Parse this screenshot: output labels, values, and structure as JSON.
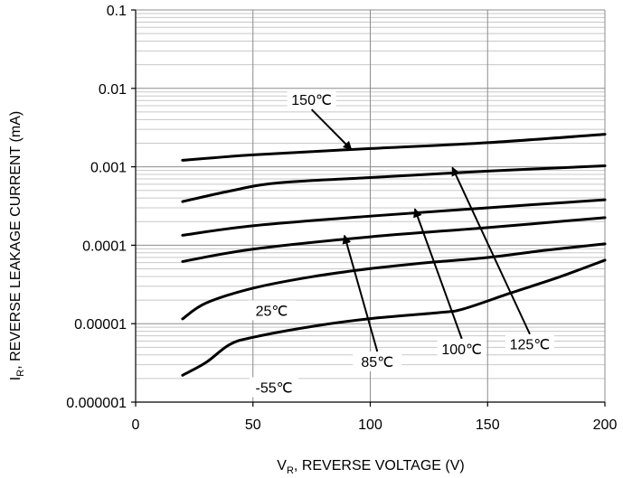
{
  "chart_data": {
    "type": "line",
    "title": "",
    "xlabel_main": "V",
    "xlabel_sub": "R",
    "xlabel_rest": ",  REVERSE VOLTAGE (V)",
    "ylabel_main": "I",
    "ylabel_sub": "R",
    "ylabel_rest": ",  REVERSE LEAKAGE CURRENT (mA)",
    "xlim": [
      0,
      200
    ],
    "ylim": [
      1e-06,
      0.1
    ],
    "yscale": "log",
    "grid": true,
    "x_ticks": [
      0,
      50,
      100,
      150,
      200
    ],
    "x_tick_labels": [
      "0",
      "50",
      "100",
      "150",
      "200"
    ],
    "y_ticks": [
      0.1,
      0.01,
      0.001,
      0.0001,
      1e-05,
      1e-06
    ],
    "y_tick_labels": [
      "0.1",
      "0.01",
      "0.001",
      "0.0001",
      "0.00001",
      "0.000001"
    ],
    "series": [
      {
        "name": "150℃",
        "x": [
          20,
          50,
          100,
          150,
          200
        ],
        "y": [
          0.00121,
          0.00142,
          0.00171,
          0.00203,
          0.0026
        ]
      },
      {
        "name": "125℃",
        "x": [
          20,
          40,
          60,
          100,
          150,
          200
        ],
        "y": [
          0.00036,
          0.00049,
          0.00062,
          0.00073,
          0.00088,
          0.00103
        ]
      },
      {
        "name": "100℃",
        "x": [
          20,
          50,
          100,
          150,
          200
        ],
        "y": [
          0.000134,
          0.000177,
          0.000235,
          0.0003,
          0.00038
        ]
      },
      {
        "name": "85℃",
        "x": [
          20,
          50,
          100,
          150,
          200
        ],
        "y": [
          6.2e-05,
          8.9e-05,
          0.000128,
          0.000168,
          0.000225
        ]
      },
      {
        "name": "25℃",
        "x": [
          20,
          30,
          50,
          75,
          100,
          125,
          150,
          175,
          200
        ],
        "y": [
          1.15e-05,
          1.83e-05,
          2.83e-05,
          3.96e-05,
          5.03e-05,
          6.03e-05,
          6.97e-05,
          8.65e-05,
          0.000104
        ]
      },
      {
        "name": "-55℃",
        "x": [
          20,
          30,
          40,
          50,
          75,
          100,
          130,
          140,
          160,
          180,
          200
        ],
        "y": [
          2.2e-06,
          3.2e-06,
          5.4e-06,
          6.7e-06,
          9.2e-06,
          1.16e-05,
          1.39e-05,
          1.55e-05,
          2.47e-05,
          3.88e-05,
          6.45e-05
        ]
      }
    ],
    "annotations": [
      {
        "label": "150℃",
        "arrow_to_x": 92,
        "arrow_to_y": 0.00165,
        "label_x": 75,
        "label_y": 0.0072
      },
      {
        "label": "125℃",
        "arrow_to_x": 135,
        "arrow_to_y": 0.00098,
        "label_x": 168,
        "label_y": 5.5e-06
      },
      {
        "label": "100℃",
        "arrow_to_x": 119,
        "arrow_to_y": 0.00029,
        "label_x": 139,
        "label_y": 4.8e-06
      },
      {
        "label": "85℃",
        "arrow_to_x": 89,
        "arrow_to_y": 0.000133,
        "label_x": 103,
        "label_y": 3.3e-06
      },
      {
        "label": "25℃",
        "arrow_to_x": null,
        "arrow_to_y": null,
        "label_x": 58,
        "label_y": 1.48e-05
      },
      {
        "label": "-55℃",
        "arrow_to_x": null,
        "arrow_to_y": null,
        "label_x": 59,
        "label_y": 1.55e-06
      }
    ]
  }
}
